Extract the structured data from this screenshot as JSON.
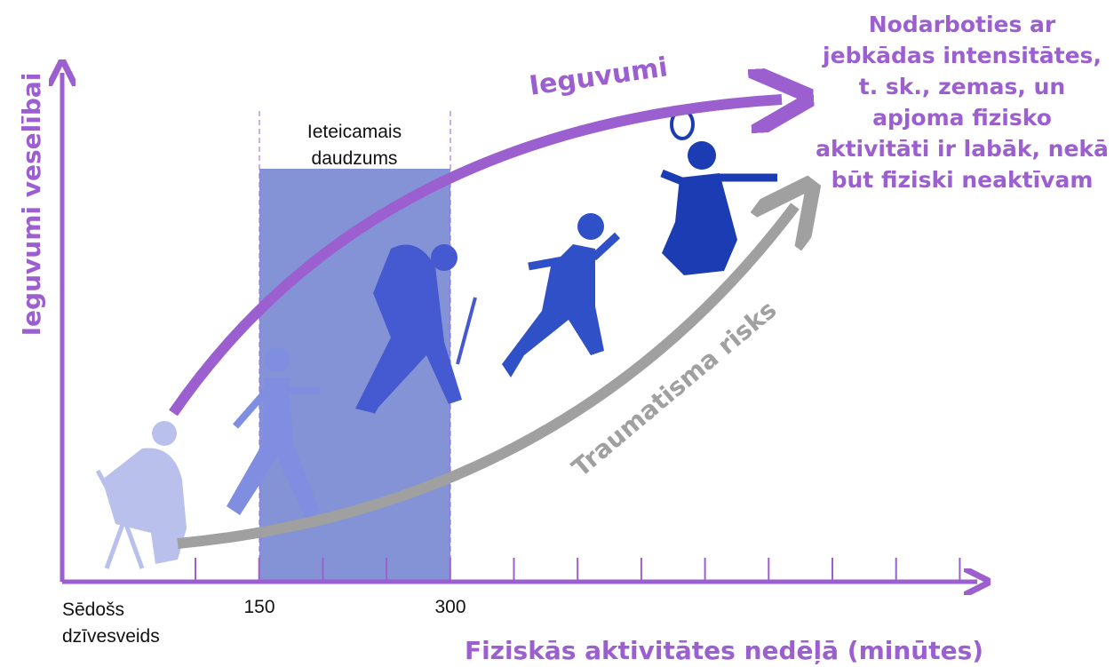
{
  "axes": {
    "y_label": "Ieguvumi veselībai",
    "x_label": "Fiziskās aktivitātes nedēļā (minūtes)",
    "x_start_label": [
      "Sēdošs",
      "dzīvesveids"
    ],
    "x_tick_labels": [
      "150",
      "300"
    ]
  },
  "band": {
    "label": [
      "Ieteicamais",
      "daudzums"
    ]
  },
  "curves": {
    "benefit": "Ieguvumi",
    "risk": "Traumatisma risks"
  },
  "note": [
    "Nodarboties ar",
    "jebkādas intensitātes,",
    "t. sk., zemas,  un",
    "apjoma fizisko",
    "aktivitāti ir labāk, nekā",
    "būt fiziski neaktīvam"
  ]
}
